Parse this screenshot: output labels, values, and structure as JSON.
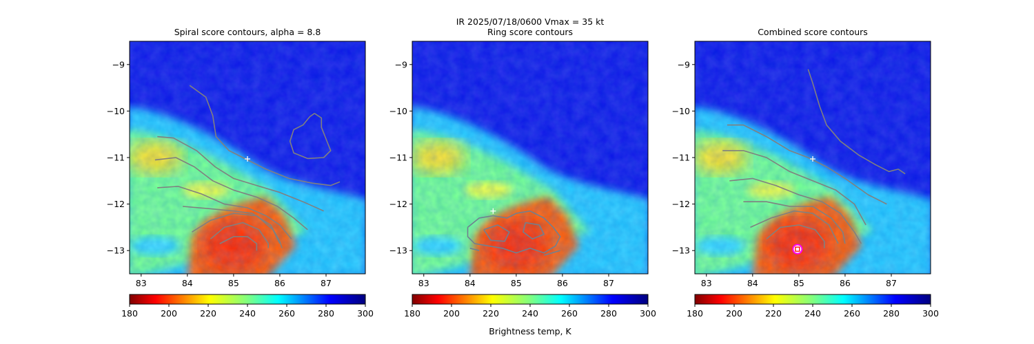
{
  "figure": {
    "suptitle_line1": "IR  2025/07/18/0600    Vmax = 35 kt",
    "colorbar_label": "Brightness temp, K"
  },
  "chart_data": [
    {
      "type": "heatmap",
      "title": "Spiral score contours, alpha =  8.8",
      "xlim": [
        82.75,
        87.85
      ],
      "ylim": [
        -13.5,
        -8.5
      ],
      "x_ticks": [
        83,
        84,
        85,
        86,
        87
      ],
      "y_ticks": [
        -9,
        -10,
        -11,
        -12,
        -13
      ],
      "x_tick_labels": [
        "83",
        "84",
        "85",
        "86",
        "87"
      ],
      "y_tick_labels": [
        "−9",
        "−10",
        "−11",
        "−12",
        "−13"
      ],
      "center_marker": {
        "x": 85.3,
        "y": -11.03
      },
      "contour_color": "#808080",
      "colorbar": {
        "range": [
          180,
          300
        ],
        "ticks": [
          180,
          200,
          220,
          240,
          260,
          280,
          300
        ],
        "tick_labels": [
          "180",
          "200",
          "220",
          "240",
          "260",
          "280",
          "300"
        ],
        "colormap": "jet_r"
      },
      "contours": [
        [
          [
            84.05,
            -9.45
          ],
          [
            84.4,
            -9.7
          ],
          [
            84.55,
            -10.1
          ],
          [
            84.62,
            -10.55
          ],
          [
            84.9,
            -10.85
          ],
          [
            85.3,
            -11.05
          ],
          [
            85.7,
            -11.25
          ],
          [
            86.2,
            -11.45
          ],
          [
            86.7,
            -11.55
          ],
          [
            87.1,
            -11.6
          ],
          [
            87.3,
            -11.52
          ]
        ],
        [
          [
            83.35,
            -10.55
          ],
          [
            83.7,
            -10.58
          ],
          [
            84.2,
            -10.85
          ],
          [
            84.6,
            -11.2
          ],
          [
            85.0,
            -11.45
          ],
          [
            85.5,
            -11.6
          ],
          [
            86.0,
            -11.75
          ],
          [
            86.5,
            -11.95
          ],
          [
            86.95,
            -12.15
          ]
        ],
        [
          [
            83.3,
            -11.05
          ],
          [
            83.75,
            -11.0
          ],
          [
            84.15,
            -11.2
          ],
          [
            84.55,
            -11.5
          ],
          [
            85.0,
            -11.7
          ],
          [
            85.5,
            -11.85
          ],
          [
            85.95,
            -12.05
          ],
          [
            86.3,
            -12.3
          ],
          [
            86.6,
            -12.55
          ]
        ],
        [
          [
            83.35,
            -11.65
          ],
          [
            83.8,
            -11.62
          ],
          [
            84.3,
            -11.78
          ],
          [
            84.8,
            -12.0
          ],
          [
            85.3,
            -12.08
          ],
          [
            85.7,
            -12.25
          ],
          [
            86.0,
            -12.45
          ],
          [
            86.25,
            -12.75
          ]
        ],
        [
          [
            83.9,
            -12.05
          ],
          [
            84.5,
            -12.1
          ],
          [
            85.0,
            -12.15
          ],
          [
            85.4,
            -12.2
          ],
          [
            85.8,
            -12.45
          ],
          [
            86.0,
            -12.8
          ],
          [
            86.05,
            -12.95
          ]
        ],
        [
          [
            84.1,
            -12.6
          ],
          [
            84.5,
            -12.35
          ],
          [
            85.0,
            -12.2
          ],
          [
            85.5,
            -12.25
          ],
          [
            85.85,
            -12.55
          ],
          [
            86.0,
            -12.85
          ]
        ],
        [
          [
            84.5,
            -12.75
          ],
          [
            84.8,
            -12.5
          ],
          [
            85.2,
            -12.4
          ],
          [
            85.55,
            -12.55
          ],
          [
            85.75,
            -12.85
          ],
          [
            85.75,
            -12.95
          ]
        ],
        [
          [
            84.7,
            -12.85
          ],
          [
            85.0,
            -12.7
          ],
          [
            85.3,
            -12.7
          ],
          [
            85.5,
            -12.85
          ],
          [
            85.5,
            -13.0
          ]
        ],
        [
          [
            86.75,
            -10.05
          ],
          [
            86.9,
            -10.15
          ],
          [
            86.9,
            -10.35
          ],
          [
            87.0,
            -10.6
          ],
          [
            87.1,
            -10.85
          ],
          [
            86.95,
            -11.0
          ],
          [
            86.6,
            -11.02
          ],
          [
            86.3,
            -10.9
          ],
          [
            86.22,
            -10.65
          ],
          [
            86.3,
            -10.4
          ],
          [
            86.5,
            -10.3
          ],
          [
            86.65,
            -10.12
          ],
          [
            86.75,
            -10.05
          ]
        ]
      ]
    },
    {
      "type": "heatmap",
      "title": "Ring score contours",
      "xlim": [
        82.75,
        87.85
      ],
      "ylim": [
        -13.5,
        -8.5
      ],
      "x_ticks": [
        83,
        84,
        85,
        86,
        87
      ],
      "y_ticks": [
        -9,
        -10,
        -11,
        -12,
        -13
      ],
      "x_tick_labels": [
        "83",
        "84",
        "85",
        "86",
        "87"
      ],
      "y_tick_labels": [
        "−9",
        "−10",
        "−11",
        "−12",
        "−13"
      ],
      "center_marker": {
        "x": 84.5,
        "y": -12.15
      },
      "contour_color": "#708090",
      "colorbar": {
        "range": [
          180,
          300
        ],
        "ticks": [
          180,
          200,
          220,
          240,
          260,
          280,
          300
        ],
        "tick_labels": [
          "180",
          "200",
          "220",
          "240",
          "260",
          "280",
          "300"
        ],
        "colormap": "jet_r"
      },
      "contours": [
        [
          [
            83.95,
            -12.5
          ],
          [
            84.2,
            -12.3
          ],
          [
            84.5,
            -12.25
          ],
          [
            84.8,
            -12.3
          ],
          [
            85.0,
            -12.2
          ],
          [
            85.3,
            -12.15
          ],
          [
            85.6,
            -12.3
          ],
          [
            85.8,
            -12.5
          ],
          [
            85.95,
            -12.7
          ],
          [
            85.85,
            -12.9
          ],
          [
            85.6,
            -13.05
          ],
          [
            85.3,
            -12.95
          ],
          [
            85.0,
            -13.05
          ],
          [
            84.7,
            -12.95
          ],
          [
            84.4,
            -12.9
          ],
          [
            84.1,
            -12.85
          ],
          [
            83.95,
            -12.7
          ],
          [
            83.95,
            -12.5
          ]
        ],
        [
          [
            84.3,
            -12.55
          ],
          [
            84.6,
            -12.45
          ],
          [
            84.85,
            -12.6
          ],
          [
            84.75,
            -12.8
          ],
          [
            84.45,
            -12.78
          ],
          [
            84.3,
            -12.55
          ]
        ],
        [
          [
            85.2,
            -12.4
          ],
          [
            85.5,
            -12.45
          ],
          [
            85.6,
            -12.65
          ],
          [
            85.35,
            -12.75
          ],
          [
            85.15,
            -12.6
          ],
          [
            85.2,
            -12.4
          ]
        ],
        [
          [
            84.0,
            -12.95
          ],
          [
            84.2,
            -13.0
          ]
        ],
        [
          [
            85.6,
            -13.1
          ],
          [
            85.95,
            -13.0
          ]
        ]
      ]
    },
    {
      "type": "heatmap",
      "title": "Combined score contours",
      "xlim": [
        82.75,
        87.85
      ],
      "ylim": [
        -13.5,
        -8.5
      ],
      "x_ticks": [
        83,
        84,
        85,
        86,
        87
      ],
      "y_ticks": [
        -9,
        -10,
        -11,
        -12,
        -13
      ],
      "x_tick_labels": [
        "83",
        "84",
        "85",
        "86",
        "87"
      ],
      "y_tick_labels": [
        "−9",
        "−10",
        "−11",
        "−12",
        "−13"
      ],
      "center_marker": {
        "x": 85.3,
        "y": -11.03
      },
      "best_center": {
        "x": 84.97,
        "y": -12.97
      },
      "contour_color": "#808080",
      "colorbar": {
        "range": [
          180,
          300
        ],
        "ticks": [
          180,
          200,
          220,
          240,
          260,
          280,
          300
        ],
        "tick_labels": [
          "180",
          "200",
          "220",
          "240",
          "260",
          "280",
          "300"
        ],
        "colormap": "jet_r"
      },
      "contours": [
        [
          [
            85.2,
            -9.1
          ],
          [
            85.3,
            -9.4
          ],
          [
            85.45,
            -9.9
          ],
          [
            85.6,
            -10.3
          ],
          [
            85.9,
            -10.65
          ],
          [
            86.3,
            -10.95
          ],
          [
            86.65,
            -11.15
          ],
          [
            86.95,
            -11.3
          ],
          [
            87.15,
            -11.25
          ],
          [
            87.3,
            -11.35
          ]
        ],
        [
          [
            83.45,
            -10.3
          ],
          [
            83.8,
            -10.3
          ],
          [
            84.3,
            -10.55
          ],
          [
            84.8,
            -10.85
          ],
          [
            85.2,
            -11.0
          ],
          [
            85.6,
            -11.2
          ],
          [
            86.0,
            -11.45
          ],
          [
            86.5,
            -11.8
          ],
          [
            86.9,
            -12.0
          ]
        ],
        [
          [
            83.35,
            -10.85
          ],
          [
            83.8,
            -10.85
          ],
          [
            84.3,
            -11.0
          ],
          [
            84.8,
            -11.3
          ],
          [
            85.3,
            -11.5
          ],
          [
            85.8,
            -11.7
          ],
          [
            86.2,
            -12.0
          ],
          [
            86.45,
            -12.45
          ]
        ],
        [
          [
            83.5,
            -11.5
          ],
          [
            84.0,
            -11.45
          ],
          [
            84.5,
            -11.6
          ],
          [
            85.0,
            -11.8
          ],
          [
            85.5,
            -11.95
          ],
          [
            85.9,
            -12.2
          ],
          [
            86.2,
            -12.6
          ],
          [
            86.35,
            -12.85
          ]
        ],
        [
          [
            83.8,
            -11.95
          ],
          [
            84.3,
            -11.95
          ],
          [
            84.8,
            -12.05
          ],
          [
            85.3,
            -12.05
          ],
          [
            85.7,
            -12.3
          ],
          [
            85.95,
            -12.6
          ],
          [
            86.0,
            -12.85
          ]
        ],
        [
          [
            83.95,
            -12.5
          ],
          [
            84.4,
            -12.3
          ],
          [
            84.9,
            -12.15
          ],
          [
            85.3,
            -12.2
          ],
          [
            85.65,
            -12.45
          ],
          [
            85.85,
            -12.85
          ]
        ],
        [
          [
            84.3,
            -12.75
          ],
          [
            84.6,
            -12.5
          ],
          [
            85.0,
            -12.45
          ],
          [
            85.35,
            -12.55
          ],
          [
            85.55,
            -12.8
          ],
          [
            85.55,
            -12.95
          ]
        ]
      ]
    }
  ]
}
